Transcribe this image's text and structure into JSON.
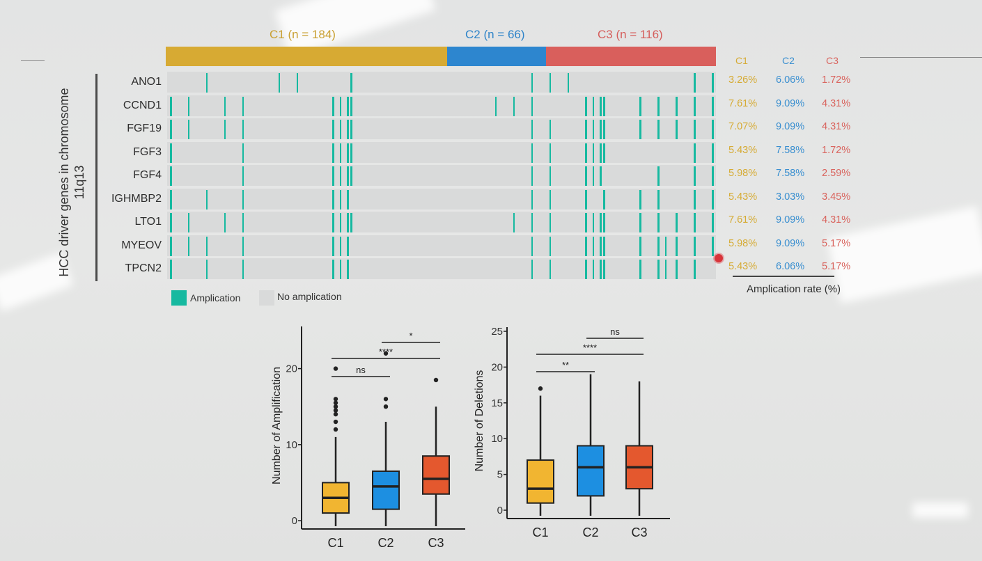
{
  "heatmap": {
    "y_axis_title": "HCC driver genes in chromosome 11q13",
    "clusters": [
      {
        "label": "C1 (n = 184)",
        "color": "#d7aa33"
      },
      {
        "label": "C2 (n = 66)",
        "color": "#2d86cf"
      },
      {
        "label": "C3 (n = 116)",
        "color": "#d95f5c"
      }
    ],
    "legend": {
      "amplification": "Amplication",
      "no_amplification": "No amplication"
    },
    "rate_title": "Amplication rate (%)",
    "rate_columns": [
      "C1",
      "C2",
      "C3"
    ],
    "rate_colors": [
      "#d6ab34",
      "#3a8fd0",
      "#d9645e"
    ],
    "genes": [
      {
        "name": "ANO1",
        "rates": [
          "3.26%",
          "6.06%",
          "1.72%"
        ]
      },
      {
        "name": "CCND1",
        "rates": [
          "7.61%",
          "9.09%",
          "4.31%"
        ]
      },
      {
        "name": "FGF19",
        "rates": [
          "7.07%",
          "9.09%",
          "4.31%"
        ]
      },
      {
        "name": "FGF3",
        "rates": [
          "5.43%",
          "7.58%",
          "1.72%"
        ]
      },
      {
        "name": "FGF4",
        "rates": [
          "5.98%",
          "7.58%",
          "2.59%"
        ]
      },
      {
        "name": "IGHMBP2",
        "rates": [
          "5.43%",
          "3.03%",
          "3.45%"
        ]
      },
      {
        "name": "LTO1",
        "rates": [
          "7.61%",
          "9.09%",
          "4.31%"
        ]
      },
      {
        "name": "MYEOV",
        "rates": [
          "5.98%",
          "9.09%",
          "5.17%"
        ]
      },
      {
        "name": "TPCN2",
        "rates": [
          "5.43%",
          "6.06%",
          "5.17%"
        ]
      }
    ],
    "amplified_samples": [
      [
        10,
        2,
        6,
        7,
        20,
        21,
        22,
        29,
        30
      ],
      [
        0,
        1,
        3,
        4,
        9,
        9.4,
        9.8,
        10,
        18,
        19,
        20,
        23,
        23.4,
        23.8,
        24,
        26,
        27,
        28,
        29,
        30
      ],
      [
        0,
        1,
        3,
        4,
        9,
        9.4,
        9.8,
        10,
        20,
        21,
        23,
        23.4,
        23.8,
        24,
        26,
        27,
        28,
        29,
        30
      ],
      [
        0,
        4,
        9,
        9.4,
        9.8,
        10,
        20,
        21,
        23,
        23.4,
        23.8,
        24,
        29,
        30
      ],
      [
        0,
        4,
        9,
        9.4,
        9.8,
        10,
        20,
        21,
        23,
        23.4,
        23.8,
        27,
        29,
        30
      ],
      [
        0,
        2,
        4,
        9,
        9.4,
        9.8,
        20,
        21,
        23,
        24,
        26,
        27,
        29,
        30
      ],
      [
        0,
        1,
        3,
        4,
        9,
        9.4,
        9.8,
        10,
        19,
        20,
        21,
        23,
        23.4,
        23.8,
        24,
        26,
        27,
        28,
        29,
        30
      ],
      [
        0,
        1,
        2,
        4,
        9,
        9.4,
        9.8,
        20,
        21,
        23,
        23.4,
        23.8,
        24,
        26,
        27,
        27.4,
        28,
        29,
        30
      ],
      [
        0,
        2,
        4,
        9,
        9.4,
        9.8,
        20,
        21,
        23,
        23.4,
        23.8,
        24,
        26,
        27,
        27.4,
        28,
        29
      ]
    ]
  },
  "boxplots": {
    "categories": [
      "C1",
      "C2",
      "C3"
    ],
    "box_colors": [
      "#f1b531",
      "#1d8fe1",
      "#e4582e"
    ],
    "amplification": {
      "ylabel": "Number of Amplification",
      "ylim": [
        0,
        25
      ],
      "ticks": [
        0,
        10,
        20
      ],
      "boxes": [
        {
          "whisker_low": 0,
          "q1": 1,
          "median": 3,
          "q3": 5,
          "whisker_high": 11,
          "outliers": [
            12,
            13,
            14,
            14.5,
            15,
            15.5,
            16,
            20
          ]
        },
        {
          "whisker_low": 0,
          "q1": 1.5,
          "median": 4.5,
          "q3": 6.5,
          "whisker_high": 13,
          "outliers": [
            15,
            16,
            22
          ]
        },
        {
          "whisker_low": 0,
          "q1": 3.5,
          "median": 5.5,
          "q3": 8.5,
          "whisker_high": 15,
          "outliers": [
            18.5
          ]
        }
      ],
      "significance": [
        {
          "from": 0,
          "to": 1,
          "label": "ns"
        },
        {
          "from": 0,
          "to": 2,
          "label": "****"
        },
        {
          "from": 1,
          "to": 2,
          "label": "*"
        }
      ]
    },
    "deletions": {
      "ylabel": "Number of Deletions",
      "ylim": [
        0,
        25
      ],
      "ticks": [
        0,
        5,
        10,
        15,
        20,
        25
      ],
      "boxes": [
        {
          "whisker_low": 0,
          "q1": 1,
          "median": 3,
          "q3": 7,
          "whisker_high": 16,
          "outliers": [
            17
          ]
        },
        {
          "whisker_low": 0,
          "q1": 2,
          "median": 6,
          "q3": 9,
          "whisker_high": 19,
          "outliers": []
        },
        {
          "whisker_low": 0,
          "q1": 3,
          "median": 6,
          "q3": 9,
          "whisker_high": 18,
          "outliers": []
        }
      ],
      "significance": [
        {
          "from": 0,
          "to": 1,
          "label": "**"
        },
        {
          "from": 0,
          "to": 2,
          "label": "****"
        },
        {
          "from": 1,
          "to": 2,
          "label": "ns"
        }
      ]
    }
  }
}
